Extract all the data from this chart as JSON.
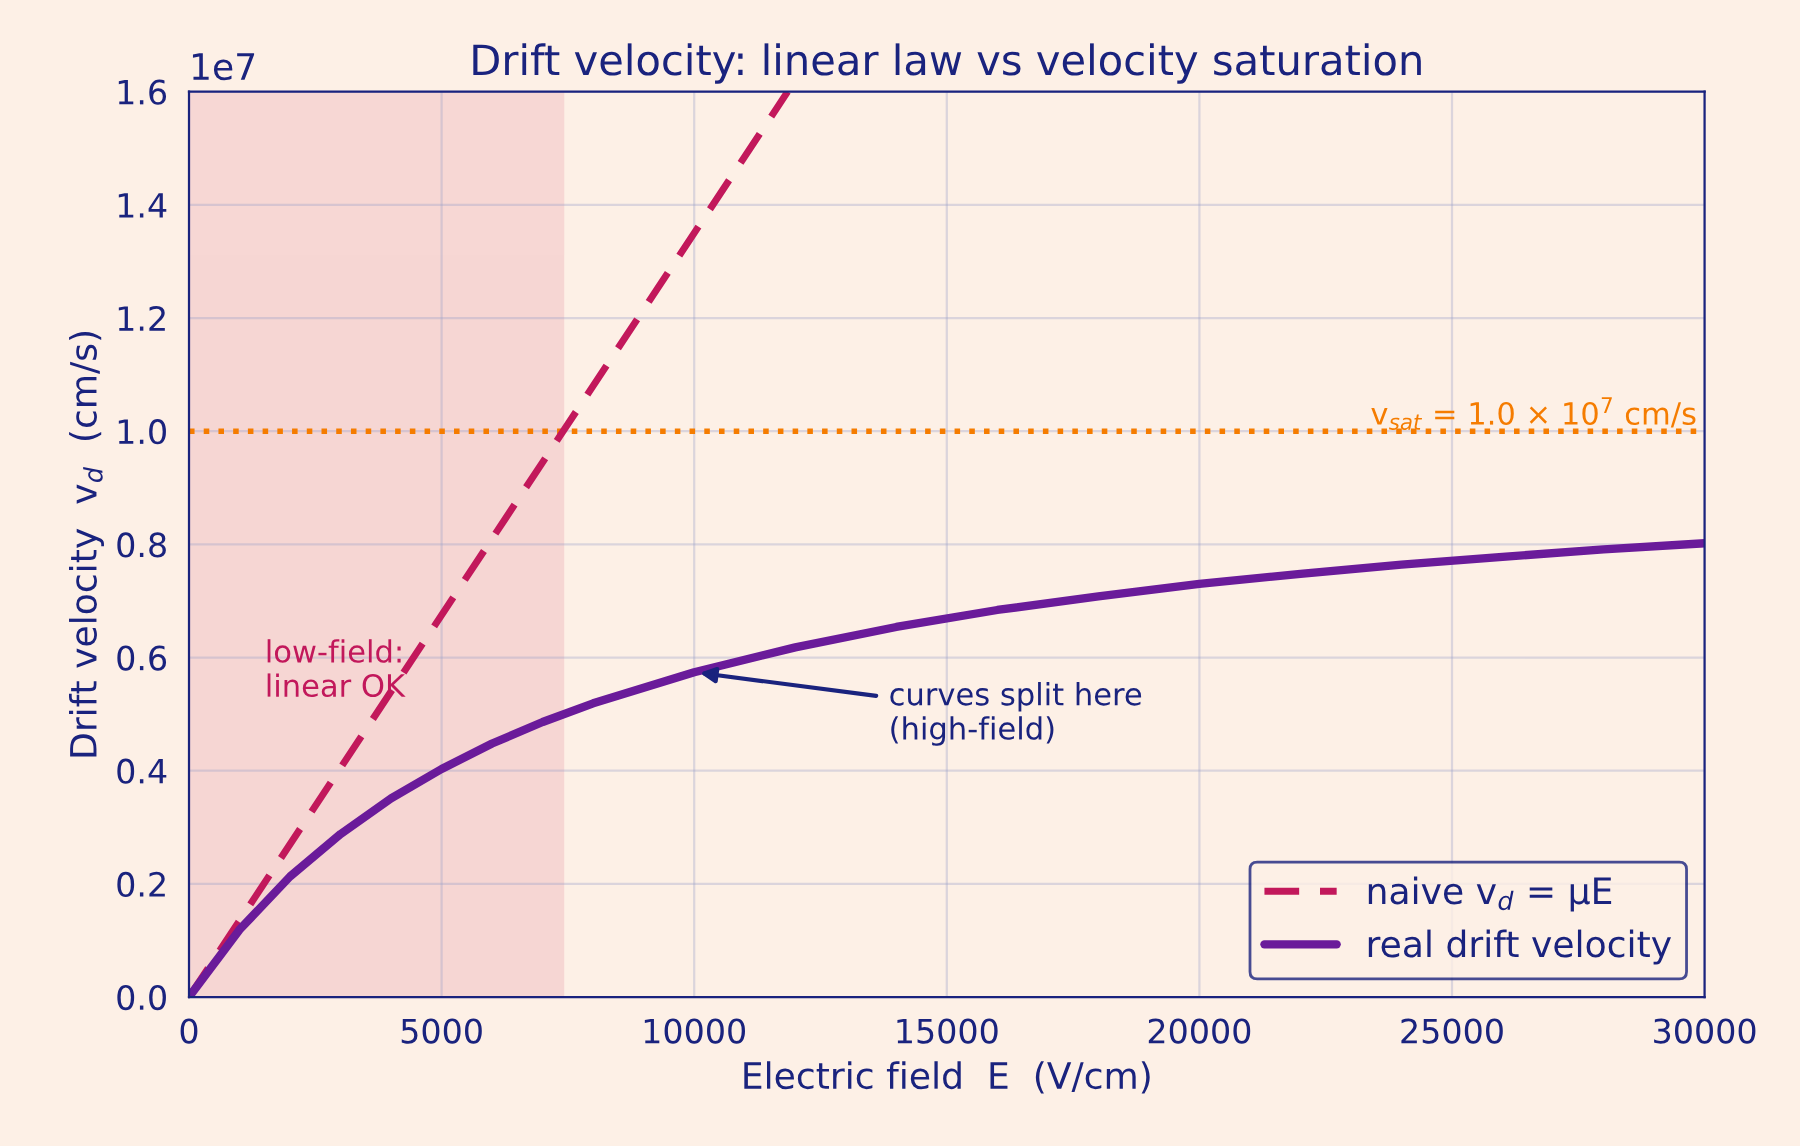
{
  "chart_data": {
    "type": "line",
    "title": "Drift velocity: linear law vs velocity saturation",
    "xlabel": "Electric field  E  (V/cm)",
    "ylabel": "Drift velocity  v$_{d}$  (cm/s)",
    "xlim": [
      0,
      30000
    ],
    "xticks": [
      0,
      5000,
      10000,
      15000,
      20000,
      25000,
      30000
    ],
    "ylim": [
      0,
      1.6
    ],
    "yticks": [
      {
        "value": 0,
        "label": "0.0"
      },
      0.2,
      0.4,
      0.6,
      0.8,
      {
        "value": 1,
        "label": "1.0"
      },
      1.2,
      1.4,
      1.6
    ],
    "series": [
      {
        "name": "naive v$_{d}$ = μE",
        "color": "#c2185b",
        "line_style": "dashed",
        "x": [
          0,
          11850
        ],
        "values": [
          0,
          1.6
        ]
      },
      {
        "name": "real drift velocity",
        "color": "#6a1b9a",
        "line_style": "solid",
        "x": [
          0,
          1000,
          2000,
          3000,
          4000,
          5000,
          6000,
          7000,
          8000,
          10000,
          12000,
          14000,
          16000,
          18000,
          20000,
          22000,
          24000,
          26000,
          28000,
          30000
        ],
        "values": [
          0,
          0.119,
          0.213,
          0.288,
          0.351,
          0.403,
          0.448,
          0.486,
          0.519,
          0.574,
          0.618,
          0.654,
          0.684,
          0.708,
          0.73,
          0.748,
          0.764,
          0.778,
          0.791,
          0.802
        ]
      }
    ],
    "ref_lines": [
      {
        "axis": "y",
        "value": 1,
        "label": "v$_{sat}$ = 1.0 × 10$^{7}$ cm/s",
        "color": "#f57c00",
        "line_style": "dotted"
      }
    ],
    "bands": [
      {
        "axis": "x",
        "from": 0,
        "to": 7400,
        "color": "#f4cccc"
      }
    ],
    "annotations": [
      "1e7",
      "low-field:\nlinear OK",
      {
        "text": "curves split here\n(high-field)",
        "x": 10000,
        "y": 0.574
      }
    ],
    "grid": true,
    "legend": "bottom right"
  }
}
